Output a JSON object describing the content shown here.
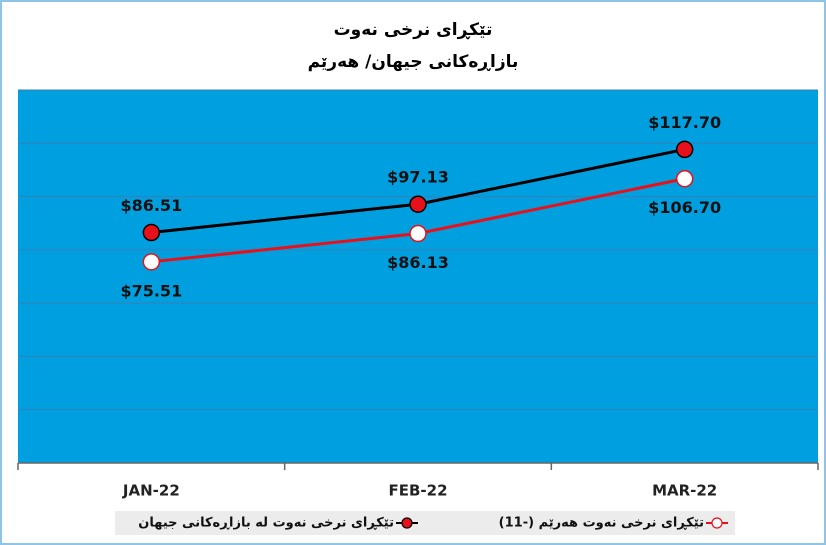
{
  "chart_data": {
    "type": "line",
    "title": "تێکڕای نرخی نەوت",
    "subtitle": "بازاڕەکانی جیهان/ هەرێم",
    "categories": [
      "JAN-22",
      "FEB-22",
      "MAR-22"
    ],
    "series": [
      {
        "name": "تێکڕای نرخی نەوت لە بازاڕەکانی جیهان",
        "color": "#000000",
        "marker_fill": "#e8101a",
        "values": [
          86.51,
          97.13,
          117.7
        ],
        "value_labels": [
          "$86.51",
          "$97.13",
          "$117.70"
        ],
        "label_position": "above"
      },
      {
        "name": "تێکڕای نرخی نەوت هەرێم (-11)",
        "color": "#e8101a",
        "marker_fill": "#ffffff",
        "values": [
          75.51,
          86.13,
          106.7
        ],
        "value_labels": [
          "$75.51",
          "$86.13",
          "$106.70"
        ],
        "label_position": "below"
      }
    ],
    "ylim": [
      0,
      140
    ],
    "yticks": [
      0,
      20,
      40,
      60,
      80,
      100,
      120,
      140
    ],
    "grid": true,
    "plot_color": "#00a0e0",
    "legend": "bottom"
  }
}
